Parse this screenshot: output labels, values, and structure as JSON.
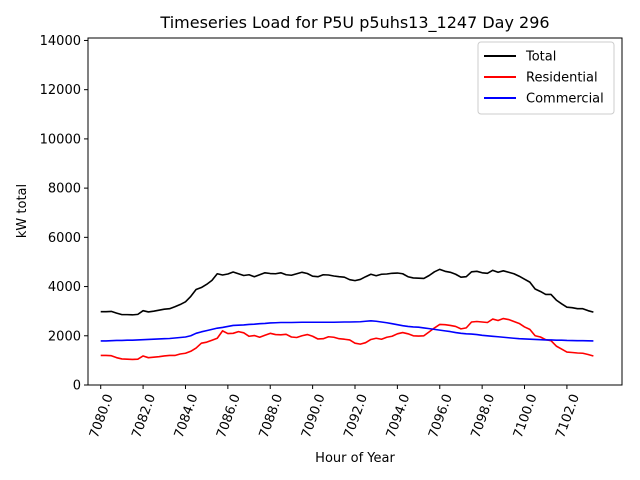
{
  "chart_data": {
    "type": "line",
    "title": "Timeseries Load for P5U p5uhs13_1247  Day 296",
    "xlabel": "Hour of Year",
    "ylabel": "kW total",
    "xlim": [
      7079.4,
      7104.6
    ],
    "ylim": [
      0,
      14100
    ],
    "xticks": [
      7080,
      7082,
      7084,
      7086,
      7088,
      7090,
      7092,
      7094,
      7096,
      7098,
      7100,
      7102
    ],
    "xtick_labels": [
      "7080.0",
      "7082.0",
      "7084.0",
      "7086.0",
      "7088.0",
      "7090.0",
      "7092.0",
      "7094.0",
      "7096.0",
      "7098.0",
      "7100.0",
      "7102.0"
    ],
    "yticks": [
      0,
      2000,
      4000,
      6000,
      8000,
      10000,
      12000,
      14000
    ],
    "ytick_labels": [
      "0",
      "2000",
      "4000",
      "6000",
      "8000",
      "10000",
      "12000",
      "14000"
    ],
    "legend_position": "top-right",
    "x_start": 7080,
    "x_step": 0.25,
    "series": [
      {
        "name": "Total",
        "color": "#000000",
        "values": [
          2980,
          2980,
          2990,
          2920,
          2860,
          2860,
          2850,
          2870,
          3020,
          2970,
          3000,
          3040,
          3080,
          3100,
          3180,
          3270,
          3380,
          3600,
          3880,
          3960,
          4090,
          4250,
          4520,
          4470,
          4510,
          4590,
          4520,
          4450,
          4480,
          4400,
          4480,
          4560,
          4530,
          4520,
          4560,
          4480,
          4460,
          4520,
          4580,
          4530,
          4420,
          4400,
          4480,
          4470,
          4430,
          4400,
          4380,
          4280,
          4240,
          4290,
          4400,
          4500,
          4440,
          4500,
          4510,
          4540,
          4550,
          4520,
          4400,
          4350,
          4340,
          4330,
          4450,
          4600,
          4700,
          4620,
          4580,
          4500,
          4380,
          4400,
          4600,
          4620,
          4560,
          4540,
          4660,
          4580,
          4640,
          4580,
          4520,
          4420,
          4300,
          4180,
          3900,
          3800,
          3680,
          3680,
          3450,
          3300,
          3160,
          3140,
          3100,
          3100,
          3020,
          2960
        ]
      },
      {
        "name": "Residential",
        "color": "#ff0000",
        "values": [
          1200,
          1200,
          1190,
          1110,
          1060,
          1050,
          1040,
          1050,
          1180,
          1110,
          1130,
          1150,
          1180,
          1200,
          1200,
          1260,
          1290,
          1370,
          1500,
          1700,
          1740,
          1820,
          1900,
          2200,
          2090,
          2100,
          2170,
          2120,
          1980,
          2010,
          1940,
          2020,
          2100,
          2050,
          2040,
          2060,
          1950,
          1930,
          2000,
          2050,
          1980,
          1870,
          1880,
          1960,
          1940,
          1880,
          1860,
          1830,
          1700,
          1660,
          1720,
          1850,
          1900,
          1860,
          1940,
          1980,
          2080,
          2130,
          2080,
          2000,
          1990,
          2000,
          2160,
          2320,
          2460,
          2450,
          2420,
          2380,
          2280,
          2320,
          2560,
          2580,
          2560,
          2540,
          2680,
          2620,
          2700,
          2660,
          2580,
          2500,
          2360,
          2260,
          2000,
          1950,
          1840,
          1800,
          1580,
          1460,
          1340,
          1320,
          1300,
          1290,
          1240,
          1180
        ]
      },
      {
        "name": "Commercial",
        "color": "#0000ff",
        "values": [
          1790,
          1790,
          1800,
          1810,
          1810,
          1820,
          1820,
          1830,
          1840,
          1850,
          1860,
          1870,
          1880,
          1890,
          1910,
          1930,
          1950,
          2000,
          2100,
          2160,
          2210,
          2260,
          2310,
          2340,
          2380,
          2420,
          2430,
          2440,
          2460,
          2470,
          2490,
          2500,
          2520,
          2530,
          2540,
          2540,
          2540,
          2545,
          2550,
          2550,
          2550,
          2550,
          2550,
          2550,
          2550,
          2555,
          2560,
          2560,
          2565,
          2570,
          2590,
          2610,
          2590,
          2560,
          2530,
          2490,
          2450,
          2410,
          2380,
          2360,
          2350,
          2320,
          2290,
          2260,
          2230,
          2200,
          2170,
          2130,
          2100,
          2080,
          2070,
          2050,
          2020,
          2000,
          1980,
          1960,
          1940,
          1920,
          1900,
          1880,
          1870,
          1860,
          1850,
          1840,
          1830,
          1830,
          1820,
          1820,
          1810,
          1805,
          1800,
          1800,
          1795,
          1790
        ]
      }
    ]
  }
}
